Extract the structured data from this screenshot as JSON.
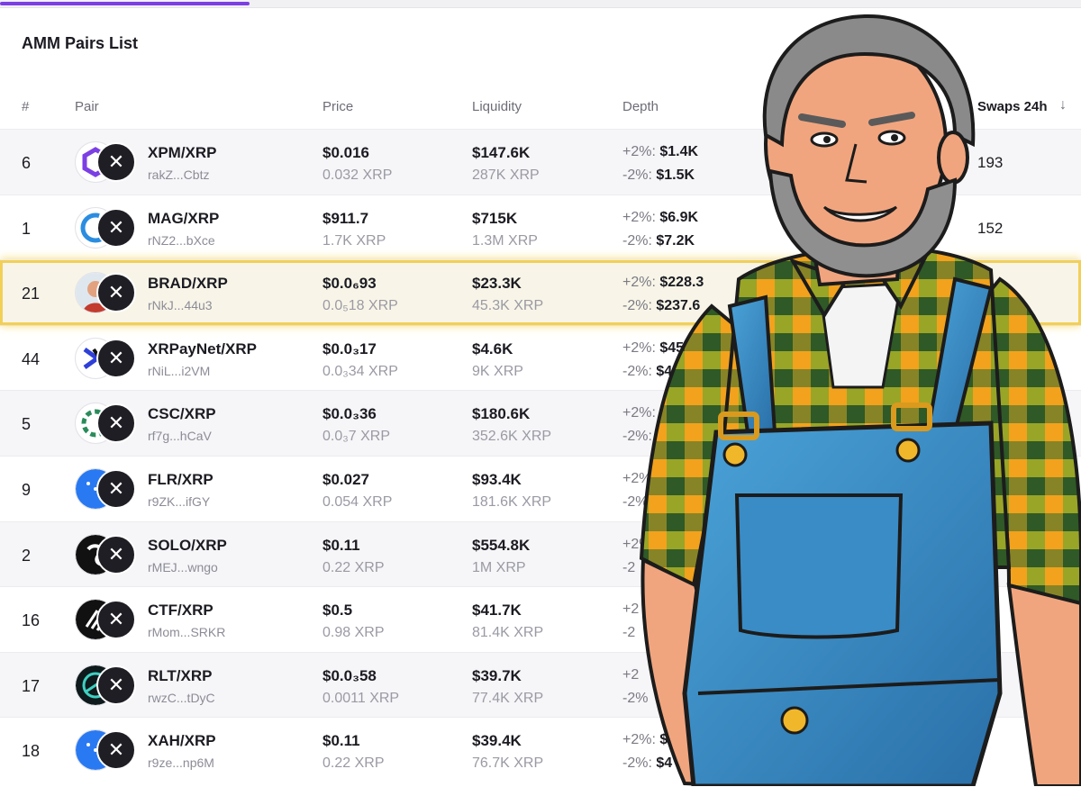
{
  "title": "AMM Pairs List",
  "columns": {
    "num": "#",
    "pair": "Pair",
    "price": "Price",
    "liquidity": "Liquidity",
    "depth": "Depth",
    "swaps": "Swaps 24h",
    "sort_icon": "arrow-down-icon"
  },
  "rows": [
    {
      "num": "6",
      "icon": "xpm-token-icon",
      "pair": "XPM/XRP",
      "addr": "rakZ...Cbtz",
      "price_usd": "$0.016",
      "price_xrp": "0.032 XRP",
      "liq_usd": "$147.6K",
      "liq_xrp": "287K XRP",
      "up_label": "+2%:",
      "up_val": "$1.4K",
      "dn_label": "-2%:",
      "dn_val": "$1.5K",
      "swaps": "193"
    },
    {
      "num": "1",
      "icon": "mag-token-icon",
      "pair": "MAG/XRP",
      "addr": "rNZ2...bXce",
      "price_usd": "$911.7",
      "price_xrp": "1.7K XRP",
      "liq_usd": "$715K",
      "liq_xrp": "1.3M XRP",
      "up_label": "+2%:",
      "up_val": "$6.9K",
      "dn_label": "-2%:",
      "dn_val": "$7.2K",
      "swaps": "152"
    },
    {
      "num": "21",
      "icon": "brad-token-icon",
      "pair": "BRAD/XRP",
      "addr": "rNkJ...44u3",
      "price_usd": "$0.0₆93",
      "price_xrp": "0.0₅18 XRP",
      "liq_usd": "$23.3K",
      "liq_xrp": "45.3K XRP",
      "up_label": "+2%:",
      "up_val": "$228.3",
      "dn_label": "-2%:",
      "dn_val": "$237.6",
      "swaps": ""
    },
    {
      "num": "44",
      "icon": "xrpaynet-token-icon",
      "pair": "XRPayNet/XRP",
      "addr": "rNiL...i2VM",
      "price_usd": "$0.0₃17",
      "price_xrp": "0.0₃34 XRP",
      "liq_usd": "$4.6K",
      "liq_xrp": "9K XRP",
      "up_label": "+2%:",
      "up_val": "$45",
      "dn_label": "-2%:",
      "dn_val": "$4",
      "swaps": ""
    },
    {
      "num": "5",
      "icon": "csc-token-icon",
      "pair": "CSC/XRP",
      "addr": "rf7g...hCaV",
      "price_usd": "$0.0₃36",
      "price_xrp": "0.0₃7 XRP",
      "liq_usd": "$180.6K",
      "liq_xrp": "352.6K XRP",
      "up_label": "+2%:",
      "up_val": "$",
      "dn_label": "-2%:",
      "dn_val": "",
      "swaps": ""
    },
    {
      "num": "9",
      "icon": "flr-token-icon",
      "pair": "FLR/XRP",
      "addr": "r9ZK...ifGY",
      "price_usd": "$0.027",
      "price_xrp": "0.054 XRP",
      "liq_usd": "$93.4K",
      "liq_xrp": "181.6K XRP",
      "up_label": "+2%:",
      "up_val": "",
      "dn_label": "-2%:",
      "dn_val": "",
      "swaps": ""
    },
    {
      "num": "2",
      "icon": "solo-token-icon",
      "pair": "SOLO/XRP",
      "addr": "rMEJ...wngo",
      "price_usd": "$0.11",
      "price_xrp": "0.22 XRP",
      "liq_usd": "$554.8K",
      "liq_xrp": "1M XRP",
      "up_label": "+2%",
      "up_val": "",
      "dn_label": "-2",
      "dn_val": "",
      "swaps": ""
    },
    {
      "num": "16",
      "icon": "ctf-token-icon",
      "pair": "CTF/XRP",
      "addr": "rMom...SRKR",
      "price_usd": "$0.5",
      "price_xrp": "0.98 XRP",
      "liq_usd": "$41.7K",
      "liq_xrp": "81.4K XRP",
      "up_label": "+2",
      "up_val": "",
      "dn_label": "-2",
      "dn_val": "",
      "swaps": ""
    },
    {
      "num": "17",
      "icon": "rlt-token-icon",
      "pair": "RLT/XRP",
      "addr": "rwzC...tDyC",
      "price_usd": "$0.0₃58",
      "price_xrp": "0.0011 XRP",
      "liq_usd": "$39.7K",
      "liq_xrp": "77.4K XRP",
      "up_label": "+2",
      "up_val": "",
      "dn_label": "-2%",
      "dn_val": "",
      "swaps": ""
    },
    {
      "num": "18",
      "icon": "xah-token-icon",
      "pair": "XAH/XRP",
      "addr": "r9ze...np6M",
      "price_usd": "$0.11",
      "price_xrp": "0.22 XRP",
      "liq_usd": "$39.4K",
      "liq_xrp": "76.7K XRP",
      "up_label": "+2%:",
      "up_val": "$",
      "dn_label": "-2%:",
      "dn_val": "$4",
      "swaps": ""
    }
  ],
  "colors": {
    "accent": "#7b3fe4",
    "highlight": "#f2cf58"
  }
}
